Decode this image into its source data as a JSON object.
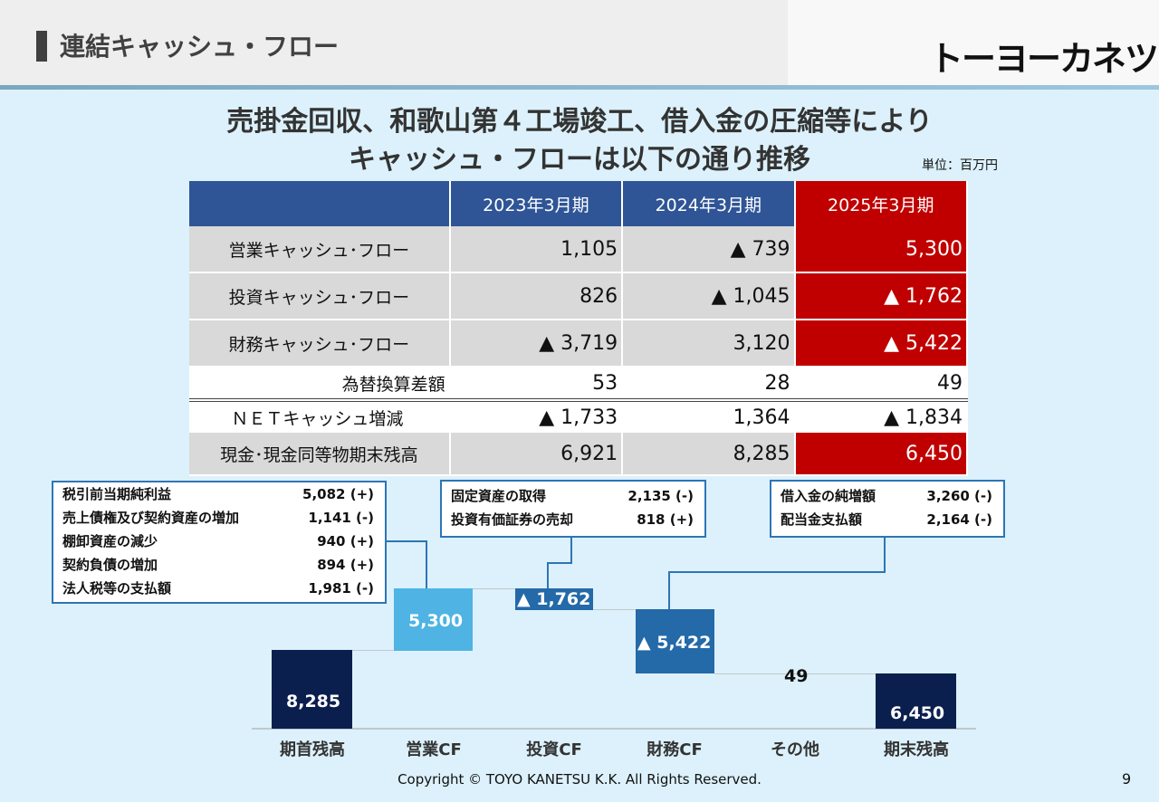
{
  "header": {
    "title": "連結キャッシュ・フロー",
    "logo": "トーヨーカネツ"
  },
  "headline": {
    "line1": "売掛金回収、和歌山第４工場竣工、借入金の圧縮等により",
    "line2": "キャッシュ・フローは以下の通り推移"
  },
  "unit": "単位：百万円",
  "table": {
    "columns": [
      "2023年3月期",
      "2024年3月期",
      "2025年3月期"
    ],
    "rows": [
      {
        "label": "営業キャッシュ･フロー",
        "values": [
          "1,105",
          "▲ 739",
          "5,300"
        ]
      },
      {
        "label": "投資キャッシュ･フロー",
        "values": [
          "826",
          "▲ 1,045",
          "▲ 1,762"
        ]
      },
      {
        "label": "財務キャッシュ･フロー",
        "values": [
          "▲ 3,719",
          "3,120",
          "▲ 5,422"
        ]
      },
      {
        "label": "為替換算差額",
        "values": [
          "53",
          "28",
          "49"
        ]
      },
      {
        "label": "ＮＥＴキャッシュ増減",
        "values": [
          "▲ 1,733",
          "1,364",
          "▲ 1,834"
        ]
      },
      {
        "label": "現金･現金同等物期末残高",
        "values": [
          "6,921",
          "8,285",
          "6,450"
        ]
      }
    ]
  },
  "callouts": {
    "operating": [
      {
        "label": "税引前当期純利益",
        "value": "5,082 (+)"
      },
      {
        "label": "売上債権及び契約資産の増加",
        "value": "1,141 (-)"
      },
      {
        "label": "棚卸資産の減少",
        "value": "940 (+)"
      },
      {
        "label": "契約負債の増加",
        "value": "894 (+)"
      },
      {
        "label": "法人税等の支払額",
        "value": "1,981 (-)"
      }
    ],
    "investing": [
      {
        "label": "固定資産の取得",
        "value": "2,135 (-)"
      },
      {
        "label": "投資有価証券の売却",
        "value": "818 (+)"
      }
    ],
    "financing": [
      {
        "label": "借入金の純増額",
        "value": "3,260 (-)"
      },
      {
        "label": "配当金支払額",
        "value": "2,164 (-)"
      }
    ]
  },
  "waterfall": {
    "bars": [
      {
        "name": "期首残高",
        "label": "8,285",
        "value": 8285,
        "color": "#0b1f4f"
      },
      {
        "name": "営業CF",
        "label": "5,300",
        "value": 5300,
        "color": "#4fb3e4"
      },
      {
        "name": "投資CF",
        "label": "▲ 1,762",
        "value": -1762,
        "color": "#2469a8"
      },
      {
        "name": "財務CF",
        "label": "▲ 5,422",
        "value": -5422,
        "color": "#2469a8"
      },
      {
        "name": "その他",
        "label": "49",
        "value": 49,
        "color": "#2469a8"
      },
      {
        "name": "期末残高",
        "label": "6,450",
        "value": 6450,
        "color": "#0b1f4f"
      }
    ]
  },
  "footer": "Copyright © TOYO KANETSU K.K. All Rights Reserved.",
  "page_number": "9"
}
